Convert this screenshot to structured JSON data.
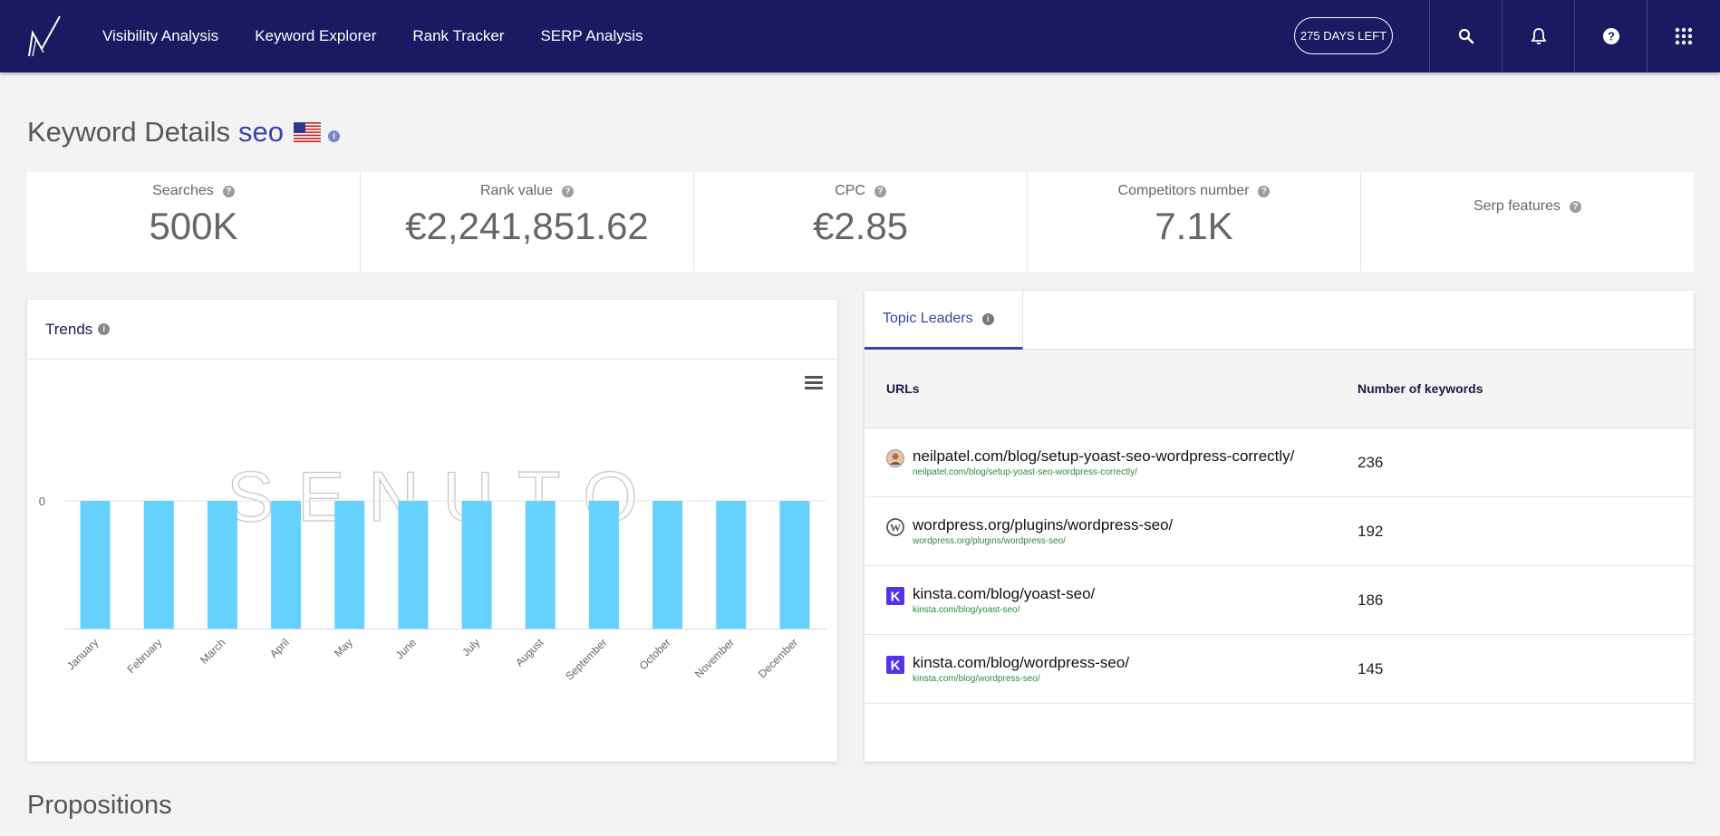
{
  "nav": {
    "items": [
      "Visibility Analysis",
      "Keyword Explorer",
      "Rank Tracker",
      "SERP Analysis"
    ],
    "days_left": "275 DAYS LEFT",
    "icons": [
      "search-icon",
      "bell-icon",
      "help-icon",
      "apps-grid-icon"
    ]
  },
  "header": {
    "title": "Keyword Details",
    "keyword": "seo",
    "flag": "us-flag",
    "info": "i"
  },
  "stats": [
    {
      "label": "Searches",
      "value": "500K"
    },
    {
      "label": "Rank value",
      "value": "€2,241,851.62"
    },
    {
      "label": "CPC",
      "value": "€2.85"
    },
    {
      "label": "Competitors number",
      "value": "7.1K"
    },
    {
      "label": "Serp features",
      "value": ""
    }
  ],
  "trends": {
    "title": "Trends",
    "watermark": "SENUTO",
    "bar_color": "#66d1fc"
  },
  "chart_data": {
    "type": "bar",
    "categories": [
      "January",
      "February",
      "March",
      "April",
      "May",
      "June",
      "July",
      "August",
      "September",
      "October",
      "November",
      "December"
    ],
    "series": [
      {
        "values": [
          0,
          0,
          0,
          0,
          0,
          0,
          0,
          0,
          0,
          0,
          0,
          0
        ]
      }
    ],
    "ytick_labels": [
      "0"
    ],
    "title": "",
    "xlabel": "",
    "ylabel": "",
    "grid": true,
    "legend": "none"
  },
  "leaders": {
    "tab_label": "Topic Leaders",
    "col_urls": "URLs",
    "col_keywords": "Number of keywords",
    "rows": [
      {
        "title": "neilpatel.com/blog/setup-yoast-seo-wordpress-correctly/",
        "url": "neilpatel.com/blog/setup-yoast-seo-wordpress-correctly/",
        "count": "236",
        "icon": "avatar-icon"
      },
      {
        "title": "wordpress.org/plugins/wordpress-seo/",
        "url": "wordpress.org/plugins/wordpress-seo/",
        "count": "192",
        "icon": "wordpress-icon"
      },
      {
        "title": "kinsta.com/blog/yoast-seo/",
        "url": "kinsta.com/blog/yoast-seo/",
        "count": "186",
        "icon": "kinsta-icon"
      },
      {
        "title": "kinsta.com/blog/wordpress-seo/",
        "url": "kinsta.com/blog/wordpress-seo/",
        "count": "145",
        "icon": "kinsta-icon"
      }
    ]
  },
  "propositions": "Propositions"
}
